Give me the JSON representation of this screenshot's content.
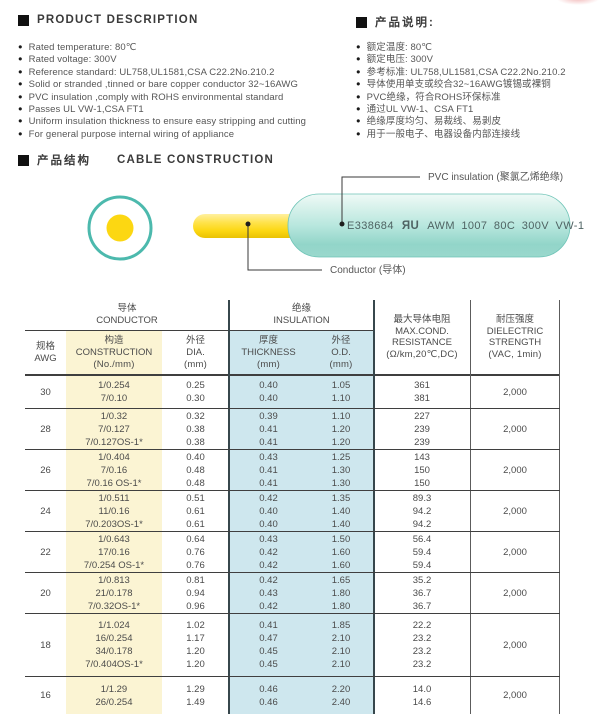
{
  "colors": {
    "accent_teal": "#4CB9AD",
    "conductor_yellow": "#FCD712",
    "table_col_yellow": "#FBF4D3",
    "table_col_blue": "#CEE7EE"
  },
  "product_description": {
    "title_en": "PRODUCT DESCRIPTION",
    "title_zh": "产品说明:",
    "bullets_en": [
      "Rated temperature: 80℃",
      "Rated voltage: 300V",
      "Reference standard: UL758,UL1581,CSA C22.2No.210.2",
      "Solid or stranded ,tinned or bare copper conductor 32~16AWG",
      "PVC insulation ,comply with ROHS environmental standard",
      "Passes UL VW-1,CSA FT1",
      "Uniform insulation thickness to ensure easy stripping and cutting",
      "For general purpose internal wiring of appliance"
    ],
    "bullets_zh": [
      "额定温度: 80℃",
      "额定电压: 300V",
      "参考标准: UL758,UL1581,CSA C22.2No.210.2",
      "导体使用单支或绞合32~16AWG镀锡或裸铜",
      "PVC绝缘，符合ROHS环保标准",
      "通过UL VW-1、CSA FT1",
      "绝缘厚度均匀、易裁线、易剥皮",
      "用于一般电子、电器设备内部连接线"
    ]
  },
  "cable_construction": {
    "title_zh": "产品结构",
    "title_en": "CABLE CONSTRUCTION",
    "insulation_label": "PVC insulation (聚氯乙烯绝缘)",
    "conductor_label": "Conductor (导体)",
    "print": {
      "cert_no": "E338684",
      "ul_mark": "ЯU",
      "spec": "AWM 1007 80C 300V VW-1"
    }
  },
  "table": {
    "group_conductor": {
      "zh": "导体",
      "en": "CONDUCTOR"
    },
    "group_insulation": {
      "zh": "绝缘",
      "en": "INSULATION"
    },
    "columns": {
      "awg": {
        "zh": "规格",
        "en": "AWG"
      },
      "construction": {
        "zh": "构造",
        "en": "CONSTRUCTION",
        "unit": "(No./mm)"
      },
      "dia": {
        "zh": "外径",
        "en": "DIA.",
        "unit": "(mm)"
      },
      "thickness": {
        "zh": "厚度",
        "en": "THICKNESS",
        "unit": "(mm)"
      },
      "od": {
        "zh": "外径",
        "en": "O.D.",
        "unit": "(mm)"
      },
      "resistance": {
        "zh": "最大导体电阻",
        "en1": "MAX.COND.",
        "en2": "RESISTANCE",
        "unit": "(Ω/km,20℃,DC)"
      },
      "dielectric": {
        "zh": "耐压强度",
        "en1": "DIELECTRIC",
        "en2": "STRENGTH",
        "unit": "(VAC, 1min)"
      }
    },
    "rows": [
      {
        "awg": "30",
        "dielectric": "2,000",
        "lines": [
          [
            "1/0.254",
            "0.25",
            "0.40",
            "1.05",
            "361"
          ],
          [
            "7/0.10",
            "0.30",
            "0.40",
            "1.10",
            "381"
          ]
        ]
      },
      {
        "awg": "28",
        "dielectric": "2,000",
        "lines": [
          [
            "1/0.32",
            "0.32",
            "0.39",
            "1.10",
            "227"
          ],
          [
            "7/0.127",
            "0.38",
            "0.41",
            "1.20",
            "239"
          ],
          [
            "7/0.127OS-1*",
            "0.38",
            "0.41",
            "1.20",
            "239"
          ]
        ]
      },
      {
        "awg": "26",
        "dielectric": "2,000",
        "lines": [
          [
            "1/0.404",
            "0.40",
            "0.43",
            "1.25",
            "143"
          ],
          [
            "7/0.16",
            "0.48",
            "0.41",
            "1.30",
            "150"
          ],
          [
            "7/0.16 OS-1*",
            "0.48",
            "0.41",
            "1.30",
            "150"
          ]
        ]
      },
      {
        "awg": "24",
        "dielectric": "2,000",
        "lines": [
          [
            "1/0.511",
            "0.51",
            "0.42",
            "1.35",
            "89.3"
          ],
          [
            "11/0.16",
            "0.61",
            "0.40",
            "1.40",
            "94.2"
          ],
          [
            "7/0.203OS-1*",
            "0.61",
            "0.40",
            "1.40",
            "94.2"
          ]
        ]
      },
      {
        "awg": "22",
        "dielectric": "2,000",
        "lines": [
          [
            "1/0.643",
            "0.64",
            "0.43",
            "1.50",
            "56.4"
          ],
          [
            "17/0.16",
            "0.76",
            "0.42",
            "1.60",
            "59.4"
          ],
          [
            "7/0.254 OS-1*",
            "0.76",
            "0.42",
            "1.60",
            "59.4"
          ]
        ]
      },
      {
        "awg": "20",
        "dielectric": "2,000",
        "lines": [
          [
            "1/0.813",
            "0.81",
            "0.42",
            "1.65",
            "35.2"
          ],
          [
            "21/0.178",
            "0.94",
            "0.43",
            "1.80",
            "36.7"
          ],
          [
            "7/0.32OS-1*",
            "0.96",
            "0.42",
            "1.80",
            "36.7"
          ]
        ]
      },
      {
        "awg": "18",
        "dielectric": "2,000",
        "lines": [
          [
            "1/1.024",
            "1.02",
            "0.41",
            "1.85",
            "22.2"
          ],
          [
            "16/0.254",
            "1.17",
            "0.47",
            "2.10",
            "23.2"
          ],
          [
            "34/0.178",
            "1.20",
            "0.45",
            "2.10",
            "23.2"
          ],
          [
            "7/0.404OS-1*",
            "1.20",
            "0.45",
            "2.10",
            "23.2"
          ]
        ]
      },
      {
        "awg": "16",
        "dielectric": "2,000",
        "lines": [
          [
            "1/1.29",
            "1.29",
            "0.46",
            "2.20",
            "14.0"
          ],
          [
            "26/0.254",
            "1.49",
            "0.46",
            "2.40",
            "14.6"
          ]
        ]
      }
    ]
  }
}
